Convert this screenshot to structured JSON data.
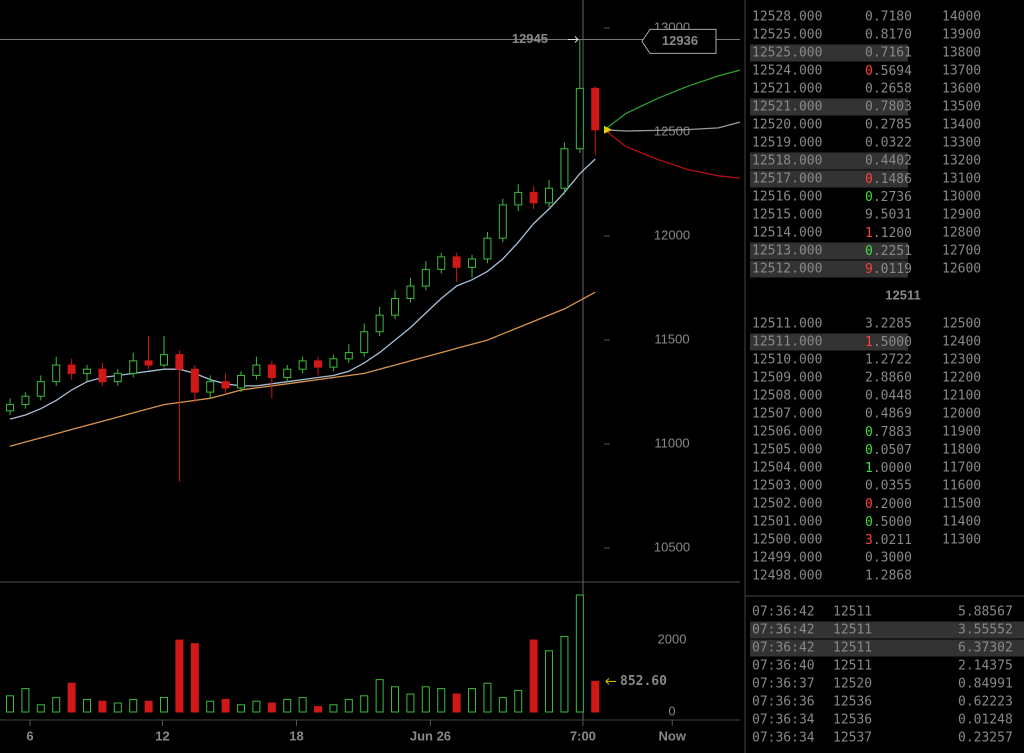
{
  "chart_data": {
    "type": "candlestick",
    "x": [
      0,
      1,
      2,
      3,
      4,
      5,
      6,
      7,
      8,
      9,
      10,
      11,
      12,
      13,
      14,
      15,
      16,
      17,
      18,
      19,
      20,
      21,
      22,
      23,
      24,
      25,
      26,
      27,
      28,
      29,
      30,
      31,
      32,
      33,
      34,
      35,
      36,
      37,
      38
    ],
    "open": [
      11160,
      11190,
      11230,
      11300,
      11380,
      11340,
      11360,
      11300,
      11340,
      11400,
      11380,
      11430,
      11360,
      11250,
      11300,
      11270,
      11330,
      11380,
      11320,
      11360,
      11400,
      11370,
      11410,
      11440,
      11540,
      11620,
      11700,
      11760,
      11840,
      11900,
      11850,
      11890,
      11990,
      12150,
      12210,
      12160,
      12230,
      12420,
      12710
    ],
    "high": [
      11220,
      11250,
      11330,
      11420,
      11410,
      11380,
      11390,
      11360,
      11440,
      11520,
      11520,
      11450,
      11380,
      11330,
      11340,
      11350,
      11420,
      11400,
      11380,
      11420,
      11420,
      11430,
      11480,
      11580,
      11660,
      11740,
      11800,
      11880,
      11920,
      11920,
      11910,
      12020,
      12180,
      12250,
      12240,
      12270,
      12450,
      12945,
      12720
    ],
    "low": [
      11140,
      11170,
      11210,
      11280,
      11310,
      11300,
      11280,
      11280,
      11320,
      11360,
      11370,
      10820,
      11200,
      11220,
      11240,
      11250,
      11310,
      11220,
      11300,
      11340,
      11330,
      11350,
      11390,
      11420,
      11520,
      11600,
      11680,
      11740,
      11820,
      11780,
      11800,
      11870,
      11970,
      12120,
      12130,
      12140,
      12200,
      12400,
      12389
    ],
    "close": [
      11190,
      11230,
      11300,
      11380,
      11340,
      11360,
      11300,
      11340,
      11400,
      11380,
      11430,
      11360,
      11250,
      11300,
      11270,
      11330,
      11380,
      11320,
      11360,
      11400,
      11370,
      11410,
      11440,
      11540,
      11620,
      11700,
      11760,
      11840,
      11900,
      11850,
      11890,
      11990,
      12150,
      12210,
      12160,
      12230,
      12420,
      12710,
      12511
    ],
    "up_color": "#3dbb3d",
    "down_color": "#d01818",
    "ma": [
      {
        "color": "#a9bfd6",
        "values": [
          11120,
          11140,
          11170,
          11210,
          11260,
          11300,
          11320,
          11330,
          11340,
          11350,
          11360,
          11360,
          11340,
          11310,
          11290,
          11280,
          11280,
          11290,
          11300,
          11310,
          11320,
          11330,
          11350,
          11390,
          11440,
          11500,
          11560,
          11630,
          11700,
          11760,
          11790,
          11830,
          11890,
          11970,
          12060,
          12130,
          12210,
          12300,
          12370
        ]
      },
      {
        "color": "#d9954a",
        "values": [
          10990,
          11010,
          11030,
          11050,
          11070,
          11090,
          11110,
          11130,
          11150,
          11170,
          11190,
          11200,
          11210,
          11220,
          11240,
          11260,
          11270,
          11280,
          11290,
          11300,
          11310,
          11320,
          11330,
          11340,
          11360,
          11380,
          11400,
          11420,
          11440,
          11460,
          11480,
          11500,
          11530,
          11560,
          11590,
          11620,
          11650,
          11690,
          11730
        ]
      }
    ],
    "forecast": [
      {
        "color": "#2e9e2e",
        "x": [
          38.6,
          40,
          42,
          44,
          46,
          47.4
        ],
        "values": [
          12511,
          12590,
          12660,
          12720,
          12770,
          12798
        ]
      },
      {
        "color": "#b01010",
        "x": [
          38.6,
          40,
          42,
          44,
          46,
          47.4
        ],
        "values": [
          12511,
          12430,
          12370,
          12320,
          12290,
          12279
        ]
      },
      {
        "color": "#9a9a9a",
        "x": [
          38.6,
          40,
          42,
          44,
          46,
          47.4
        ],
        "values": [
          12511,
          12505,
          12508,
          12512,
          12520,
          12548
        ]
      }
    ],
    "xlim": [
      -0.65,
      47.4
    ],
    "xticks": [
      {
        "value": 1.3,
        "label": "6"
      },
      {
        "value": 9.9,
        "label": "12"
      },
      {
        "value": 18.6,
        "label": "18"
      },
      {
        "value": 27.3,
        "label": "Jun 26"
      },
      {
        "value": 37.2,
        "label": "7:00"
      },
      {
        "value": 43,
        "label": "Now"
      }
    ],
    "ylim": [
      10337,
      13135
    ],
    "yticks": [
      10500,
      11000,
      11500,
      12000,
      12500,
      13000
    ],
    "crosshair_price": 12936,
    "volume": {
      "values": [
        450,
        650,
        200,
        400,
        800,
        350,
        300,
        250,
        350,
        300,
        400,
        2000,
        1900,
        300,
        350,
        200,
        300,
        250,
        350,
        400,
        150,
        200,
        350,
        450,
        900,
        700,
        500,
        700,
        650,
        500,
        650,
        800,
        400,
        600,
        2000,
        1700,
        2100,
        3250,
        852.6
      ],
      "last_value_label": "852.60",
      "ylim": [
        0,
        3530
      ],
      "yticks": [
        0,
        2000
      ]
    }
  },
  "order_book": {
    "asks": [
      {
        "price": "12528.000",
        "amount": "0.7180",
        "state": "dim"
      },
      {
        "price": "12525.000",
        "amount": "0.8170",
        "state": "dim"
      },
      {
        "price": "12525.000",
        "amount": "0.7161",
        "state": "highlight"
      },
      {
        "price": "12524.000",
        "amount": "0.5694",
        "state": "normal",
        "flash": "red"
      },
      {
        "price": "12521.000",
        "amount": "0.2658",
        "state": "dim"
      },
      {
        "price": "12521.000",
        "amount": "0.7803",
        "state": "highlight"
      },
      {
        "price": "12520.000",
        "amount": "0.2785",
        "state": "dim"
      },
      {
        "price": "12519.000",
        "amount": "0.0322",
        "state": "dim"
      },
      {
        "price": "12518.000",
        "amount": "0.4402",
        "state": "highlight"
      },
      {
        "price": "12517.000",
        "amount": "0.1486",
        "state": "highlight",
        "flash": "red"
      },
      {
        "price": "12516.000",
        "amount": "0.2736",
        "state": "normal",
        "flash": "green"
      },
      {
        "price": "12515.000",
        "amount": "9.5031",
        "state": "dim"
      },
      {
        "price": "12514.000",
        "amount": "1.1200",
        "state": "dim",
        "flash": "red"
      },
      {
        "price": "12513.000",
        "amount": "0.2251",
        "state": "highlight",
        "flash": "green"
      },
      {
        "price": "12512.000",
        "amount": "9.0119",
        "state": "highlight",
        "flash": "red"
      }
    ],
    "last_price": "12511",
    "bids": [
      {
        "price": "12511.000",
        "amount": "3.2285",
        "state": "dim"
      },
      {
        "price": "12511.000",
        "amount": "1.5000",
        "state": "highlight",
        "flash": "red"
      },
      {
        "price": "12510.000",
        "amount": "1.2722",
        "state": "normal"
      },
      {
        "price": "12509.000",
        "amount": "2.8860",
        "state": "normal"
      },
      {
        "price": "12508.000",
        "amount": "0.0448",
        "state": "normal"
      },
      {
        "price": "12507.000",
        "amount": "0.4869",
        "state": "normal"
      },
      {
        "price": "12506.000",
        "amount": "0.7883",
        "state": "normal",
        "flash": "green"
      },
      {
        "price": "12505.000",
        "amount": "0.0507",
        "state": "normal",
        "flash": "green"
      },
      {
        "price": "12504.000",
        "amount": "1.0000",
        "state": "normal",
        "flash": "green"
      },
      {
        "price": "12503.000",
        "amount": "0.0355",
        "state": "normal"
      },
      {
        "price": "12502.000",
        "amount": "0.2000",
        "state": "normal",
        "flash": "red"
      },
      {
        "price": "12501.000",
        "amount": "0.5000",
        "state": "normal",
        "flash": "green"
      },
      {
        "price": "12500.000",
        "amount": "3.0211",
        "state": "normal",
        "flash": "red"
      },
      {
        "price": "12499.000",
        "amount": "0.3000",
        "state": "normal"
      },
      {
        "price": "12498.000",
        "amount": "1.2868",
        "state": "normal"
      }
    ],
    "depth_asks": [
      "14000",
      "13900",
      "13800",
      "13700",
      "13600",
      "13500",
      "13400",
      "13300",
      "13200",
      "13100",
      "13000",
      "12900",
      "12800",
      "12700",
      "12600"
    ],
    "depth_bids": [
      "12500",
      "12400",
      "12300",
      "12200",
      "12100",
      "12000",
      "11900",
      "11800",
      "11700",
      "11600",
      "11500",
      "11400",
      "11300"
    ]
  },
  "trades": [
    {
      "time": "07:36:42",
      "price": "12511",
      "amount": "5.88567",
      "side": "sell",
      "state": "normal"
    },
    {
      "time": "07:36:42",
      "price": "12511",
      "amount": "3.55552",
      "side": "sell",
      "state": "highlight"
    },
    {
      "time": "07:36:42",
      "price": "12511",
      "amount": "6.37302",
      "side": "sell",
      "state": "highlight"
    },
    {
      "time": "07:36:40",
      "price": "12511",
      "amount": "2.14375",
      "side": "sell",
      "state": "normal"
    },
    {
      "time": "07:36:37",
      "price": "12520",
      "amount": "0.84991",
      "side": "sell",
      "state": "normal"
    },
    {
      "time": "07:36:36",
      "price": "12536",
      "amount": "0.62223",
      "side": "sell",
      "state": "normal"
    },
    {
      "time": "07:36:34",
      "price": "12536",
      "amount": "0.01248",
      "side": "sell",
      "state": "normal"
    },
    {
      "time": "07:36:34",
      "price": "12537",
      "amount": "0.23257",
      "side": "buy",
      "state": "normal"
    }
  ]
}
